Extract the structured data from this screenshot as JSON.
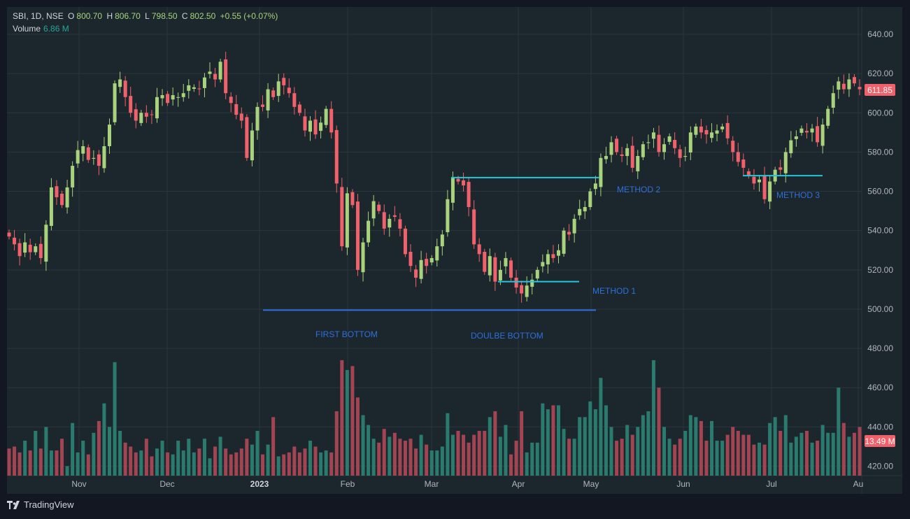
{
  "header": {
    "symbol": "SBI, 1D, NSE",
    "open_label": "O",
    "open": "800.70",
    "high_label": "H",
    "high": "806.70",
    "low_label": "L",
    "low": "798.50",
    "close_label": "C",
    "close": "802.50",
    "change": "+0.55 (+0.07%)",
    "volume_label": "Volume",
    "volume": "6.86 M"
  },
  "footer": {
    "brand": "TradingView"
  },
  "colors": {
    "background": "#1c272d",
    "grid": "#2a363c",
    "up": "#a9d27c",
    "down": "#f0616b",
    "vol_up": "#2a7a6e",
    "vol_down": "#a24452",
    "text": "#b2b5be",
    "annotation": "#2f6fdb",
    "neckline": "#26c6da"
  },
  "chart_data": {
    "type": "candlestick",
    "y_ticks": [
      "640.00",
      "620.00",
      "600.00",
      "580.00",
      "560.00",
      "540.00",
      "520.00",
      "500.00",
      "480.00",
      "460.00",
      "440.00",
      "420.00"
    ],
    "ylim": [
      414,
      646
    ],
    "x_ticks": [
      "Nov",
      "Dec",
      "2023",
      "Feb",
      "Mar",
      "Apr",
      "May",
      "Jun",
      "Jul",
      "Au"
    ],
    "last_price": "611.85",
    "last_volume": "13.49 M",
    "price_series": [
      537,
      533,
      527,
      534,
      529,
      532,
      526,
      543,
      562,
      557,
      553,
      562,
      573,
      581,
      583,
      576,
      577,
      573,
      583,
      594,
      615,
      617,
      608,
      600,
      596,
      600,
      598,
      599,
      608,
      609,
      605,
      609,
      608,
      610,
      614,
      613,
      612,
      618,
      621,
      617,
      626,
      610,
      605,
      599,
      596,
      577,
      591,
      603,
      603,
      612,
      608,
      616,
      614,
      610,
      603,
      600,
      591,
      596,
      589,
      595,
      602,
      590,
      564,
      532,
      559,
      553,
      520,
      534,
      545,
      555,
      550,
      541,
      546,
      547,
      541,
      528,
      522,
      516,
      525,
      522,
      526,
      532,
      538,
      556,
      567,
      565,
      563,
      552,
      533,
      528,
      519,
      527,
      514,
      520,
      526,
      516,
      511,
      508,
      512,
      515,
      520,
      524,
      528,
      526,
      530,
      540,
      538,
      546,
      551,
      552,
      560,
      564,
      577,
      578,
      585,
      580,
      578,
      582,
      572,
      578,
      584,
      585,
      590,
      580,
      584,
      588,
      582,
      577,
      578,
      590,
      593,
      590,
      589,
      590,
      591,
      593,
      587,
      580,
      575,
      572,
      568,
      564,
      566,
      556,
      565,
      571,
      571,
      580,
      586,
      588,
      592,
      590,
      592,
      585,
      594,
      602,
      610,
      616,
      612,
      617,
      615,
      612
    ],
    "volume_series": [
      429,
      430,
      427,
      433,
      428,
      438,
      429,
      440,
      428,
      428,
      434,
      420,
      442,
      427,
      433,
      426,
      437,
      443,
      452,
      440,
      473,
      438,
      432,
      430,
      427,
      428,
      434,
      425,
      429,
      433,
      427,
      426,
      433,
      428,
      434,
      427,
      429,
      434,
      424,
      430,
      435,
      429,
      426,
      427,
      429,
      434,
      431,
      438,
      426,
      431,
      445,
      425,
      426,
      427,
      430,
      427,
      429,
      433,
      430,
      427,
      428,
      427,
      448,
      474,
      469,
      471,
      455,
      446,
      441,
      434,
      432,
      439,
      435,
      437,
      434,
      433,
      434,
      429,
      436,
      431,
      428,
      428,
      430,
      447,
      436,
      438,
      436,
      432,
      436,
      438,
      438,
      445,
      448,
      435,
      441,
      426,
      433,
      448,
      427,
      432,
      432,
      452,
      449,
      451,
      451,
      439,
      434,
      434,
      445,
      445,
      453,
      449,
      465,
      451,
      440,
      433,
      434,
      441,
      436,
      440,
      446,
      448,
      474,
      460,
      440,
      434,
      431,
      434,
      438,
      446,
      445,
      443,
      433,
      443,
      433,
      433,
      436,
      440,
      438,
      436,
      436,
      431,
      432,
      431,
      442,
      445,
      438,
      446,
      432,
      435,
      437,
      438,
      432,
      433,
      441,
      437,
      437,
      460,
      442,
      435,
      437,
      440
    ],
    "pattern_lines": {
      "first_bottom_neckline": 499.5,
      "method1_level": 514,
      "method2_level": 567,
      "method3_level": 568
    },
    "annotations": {
      "first_bottom": "FIRST BOTTOM",
      "double_bottom": "DOULBE BOTTOM",
      "method1": "METHOD 1",
      "method2": "METHOD 2",
      "method3": "METHOD 3"
    }
  }
}
